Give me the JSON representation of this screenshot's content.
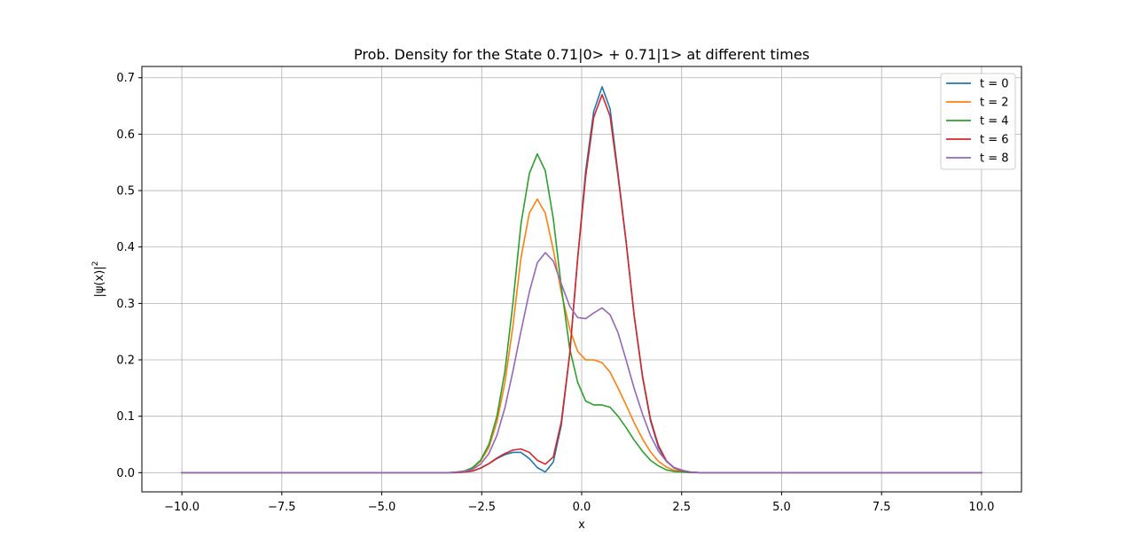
{
  "chart_data": {
    "type": "line",
    "title": "Prob. Density for the State 0.71|0> + 0.71|1> at different times",
    "xlabel": "x",
    "ylabel_base": "|ψ(x)|",
    "ylabel_sup": "2",
    "xlim": [
      -11.0,
      11.0
    ],
    "ylim": [
      -0.034,
      0.72
    ],
    "xticks": [
      -10.0,
      -7.5,
      -5.0,
      -2.5,
      0.0,
      2.5,
      5.0,
      7.5,
      10.0
    ],
    "xtick_labels": [
      "−10.0",
      "−7.5",
      "−5.0",
      "−2.5",
      "0.0",
      "2.5",
      "5.0",
      "7.5",
      "10.0"
    ],
    "yticks": [
      0.0,
      0.1,
      0.2,
      0.3,
      0.4,
      0.5,
      0.6,
      0.7
    ],
    "ytick_labels": [
      "0.0",
      "0.1",
      "0.2",
      "0.3",
      "0.4",
      "0.5",
      "0.6",
      "0.7"
    ],
    "grid": true,
    "legend_position": "top-right",
    "x": [
      -10.0,
      -3.33,
      -3.13,
      -2.93,
      -2.73,
      -2.53,
      -2.32,
      -2.12,
      -1.92,
      -1.72,
      -1.52,
      -1.31,
      -1.11,
      -0.91,
      -0.71,
      -0.51,
      -0.3,
      -0.1,
      0.1,
      0.3,
      0.51,
      0.71,
      0.91,
      1.11,
      1.31,
      1.52,
      1.72,
      1.92,
      2.12,
      2.32,
      2.53,
      2.73,
      2.93,
      3.13,
      3.33,
      10.0
    ],
    "series": [
      {
        "name": "t = 0",
        "color": "#1f77b4",
        "values": [
          0.0,
          0.0,
          0.0,
          0.001,
          0.003,
          0.008,
          0.016,
          0.025,
          0.032,
          0.036,
          0.036,
          0.025,
          0.009,
          0.001,
          0.019,
          0.084,
          0.21,
          0.38,
          0.535,
          0.64,
          0.684,
          0.645,
          0.53,
          0.41,
          0.28,
          0.17,
          0.092,
          0.045,
          0.02,
          0.008,
          0.003,
          0.001,
          0.0,
          0.0,
          0.0,
          0.0
        ]
      },
      {
        "name": "t = 2",
        "color": "#ff7f0e",
        "values": [
          0.0,
          0.0,
          0.001,
          0.003,
          0.008,
          0.02,
          0.045,
          0.09,
          0.16,
          0.26,
          0.38,
          0.46,
          0.485,
          0.46,
          0.395,
          0.32,
          0.255,
          0.215,
          0.2,
          0.2,
          0.195,
          0.178,
          0.15,
          0.12,
          0.089,
          0.06,
          0.037,
          0.02,
          0.01,
          0.004,
          0.002,
          0.001,
          0.0,
          0.0,
          0.0,
          0.0
        ]
      },
      {
        "name": "t = 4",
        "color": "#2ca02c",
        "values": [
          0.0,
          0.0,
          0.001,
          0.003,
          0.009,
          0.022,
          0.05,
          0.1,
          0.18,
          0.3,
          0.44,
          0.53,
          0.565,
          0.535,
          0.45,
          0.33,
          0.22,
          0.16,
          0.127,
          0.12,
          0.12,
          0.116,
          0.1,
          0.08,
          0.058,
          0.038,
          0.022,
          0.012,
          0.005,
          0.002,
          0.001,
          0.0,
          0.0,
          0.0,
          0.0,
          0.0
        ]
      },
      {
        "name": "t = 6",
        "color": "#d62728",
        "values": [
          0.0,
          0.0,
          0.0,
          0.001,
          0.003,
          0.008,
          0.016,
          0.026,
          0.034,
          0.04,
          0.042,
          0.036,
          0.022,
          0.015,
          0.028,
          0.09,
          0.21,
          0.38,
          0.525,
          0.63,
          0.67,
          0.632,
          0.525,
          0.41,
          0.28,
          0.172,
          0.095,
          0.048,
          0.021,
          0.008,
          0.003,
          0.001,
          0.0,
          0.0,
          0.0,
          0.0
        ]
      },
      {
        "name": "t = 8",
        "color": "#9467bd",
        "values": [
          0.0,
          0.0,
          0.001,
          0.002,
          0.006,
          0.015,
          0.034,
          0.066,
          0.115,
          0.18,
          0.25,
          0.32,
          0.372,
          0.39,
          0.375,
          0.335,
          0.295,
          0.275,
          0.273,
          0.283,
          0.292,
          0.28,
          0.248,
          0.2,
          0.15,
          0.104,
          0.066,
          0.038,
          0.02,
          0.009,
          0.004,
          0.001,
          0.0,
          0.0,
          0.0,
          0.0
        ]
      }
    ]
  }
}
